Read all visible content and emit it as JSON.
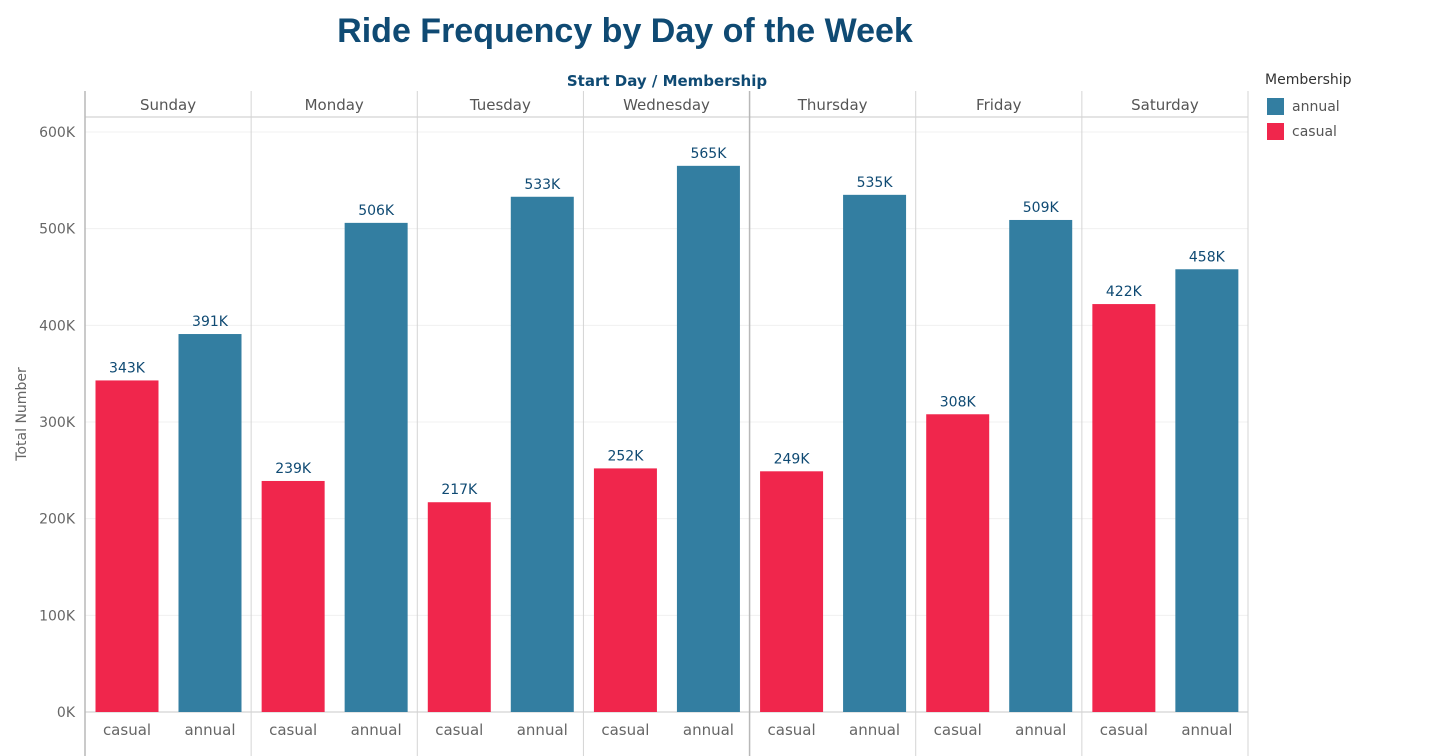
{
  "chart_data": {
    "type": "bar",
    "title": "Ride Frequency by Day of the Week",
    "header_label": "Start Day  /  Membership",
    "ylabel": "Total Number",
    "ylim": [
      0,
      600000
    ],
    "yticks": [
      0,
      100000,
      200000,
      300000,
      400000,
      500000,
      600000
    ],
    "ytick_labels": [
      "0K",
      "100K",
      "200K",
      "300K",
      "400K",
      "500K",
      "600K"
    ],
    "categories": [
      "Sunday",
      "Monday",
      "Tuesday",
      "Wednesday",
      "Thursday",
      "Friday",
      "Saturday"
    ],
    "sub_categories": [
      "casual",
      "annual"
    ],
    "series": [
      {
        "name": "casual",
        "color": "#f0264c",
        "values": [
          343000,
          239000,
          217000,
          252000,
          249000,
          308000,
          422000
        ],
        "labels": [
          "343K",
          "239K",
          "217K",
          "252K",
          "249K",
          "308K",
          "422K"
        ]
      },
      {
        "name": "annual",
        "color": "#337ea1",
        "values": [
          391000,
          506000,
          533000,
          565000,
          535000,
          509000,
          458000
        ],
        "labels": [
          "391K",
          "506K",
          "533K",
          "565K",
          "535K",
          "509K",
          "458K"
        ]
      }
    ],
    "legend": {
      "title": "Membership",
      "position": "top-right",
      "items": [
        {
          "name": "annual",
          "color": "#337ea1"
        },
        {
          "name": "casual",
          "color": "#f0264c"
        }
      ]
    },
    "label_color": "#0f4a73"
  }
}
